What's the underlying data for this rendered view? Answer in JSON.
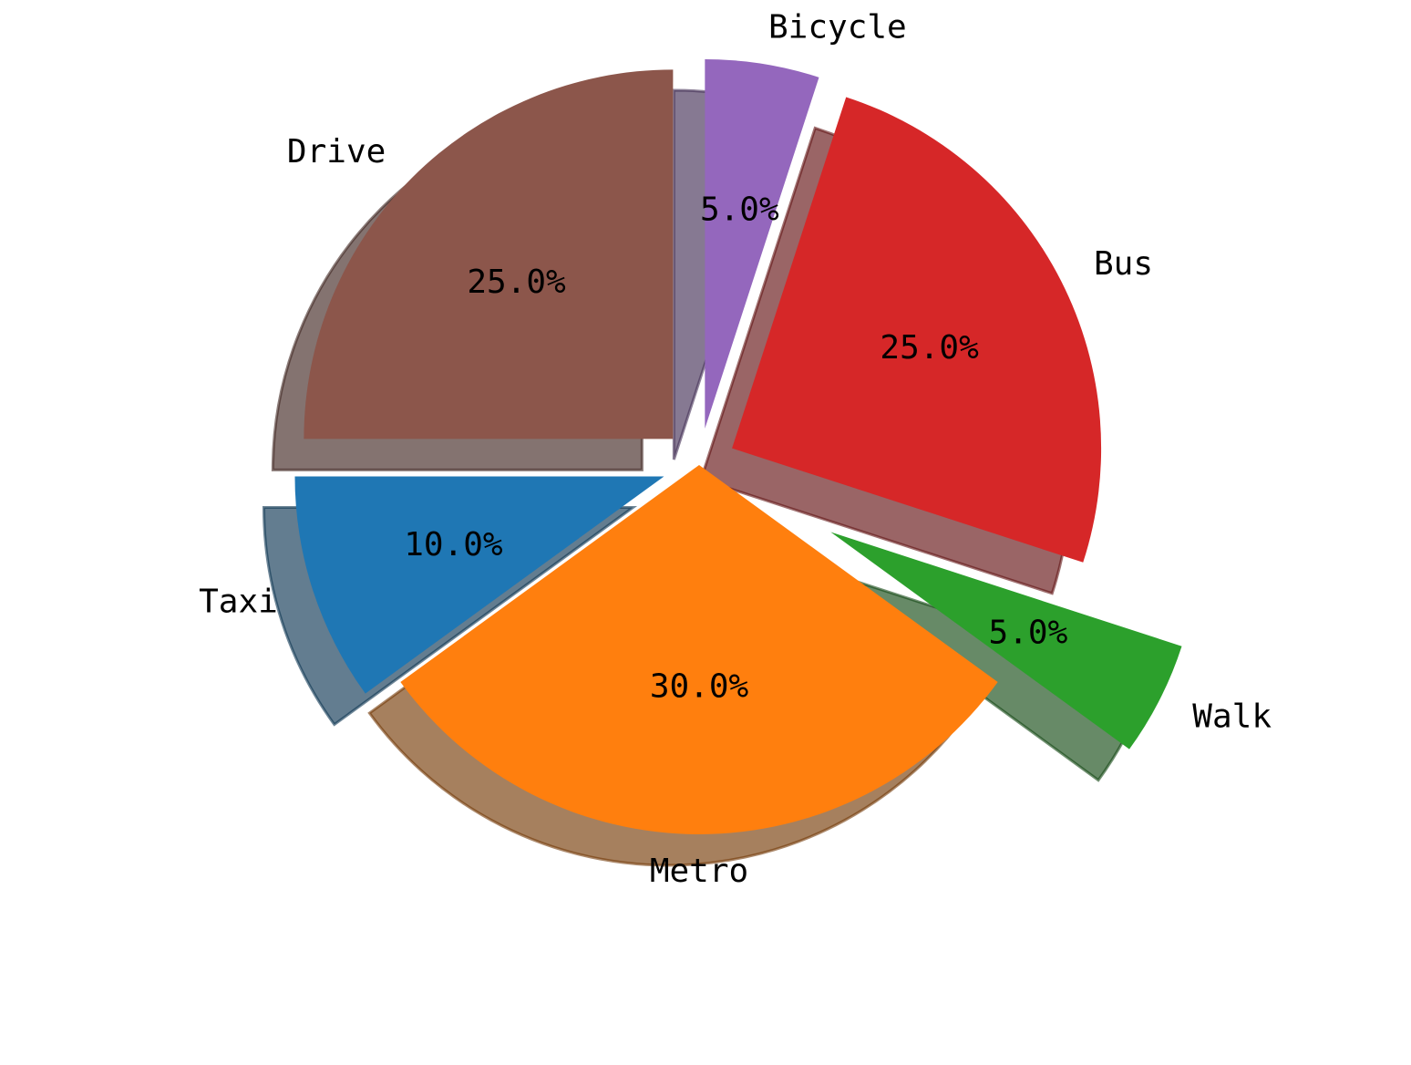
{
  "chart_data": {
    "type": "pie",
    "title": "",
    "slices": [
      {
        "label": "Drive",
        "value": 25.0,
        "pct_label": "25.0%",
        "color": "#8c564b",
        "explode": 0.1
      },
      {
        "label": "Taxi",
        "value": 10.0,
        "pct_label": "10.0%",
        "color": "#1f77b4",
        "explode": 0.1
      },
      {
        "label": "Metro",
        "value": 30.0,
        "pct_label": "30.0%",
        "color": "#ff7f0e",
        "explode": 0.0
      },
      {
        "label": "Walk",
        "value": 5.0,
        "pct_label": "5.0%",
        "color": "#2ca02c",
        "explode": 0.4
      },
      {
        "label": "Bus",
        "value": 25.0,
        "pct_label": "25.0%",
        "color": "#d62728",
        "explode": 0.1
      },
      {
        "label": "Bicycle",
        "value": 5.0,
        "pct_label": "5.0%",
        "color": "#9467bd",
        "explode": 0.1
      }
    ],
    "start_angle_deg": 90,
    "direction": "counterclockwise",
    "shadow": true,
    "legend": "none"
  }
}
